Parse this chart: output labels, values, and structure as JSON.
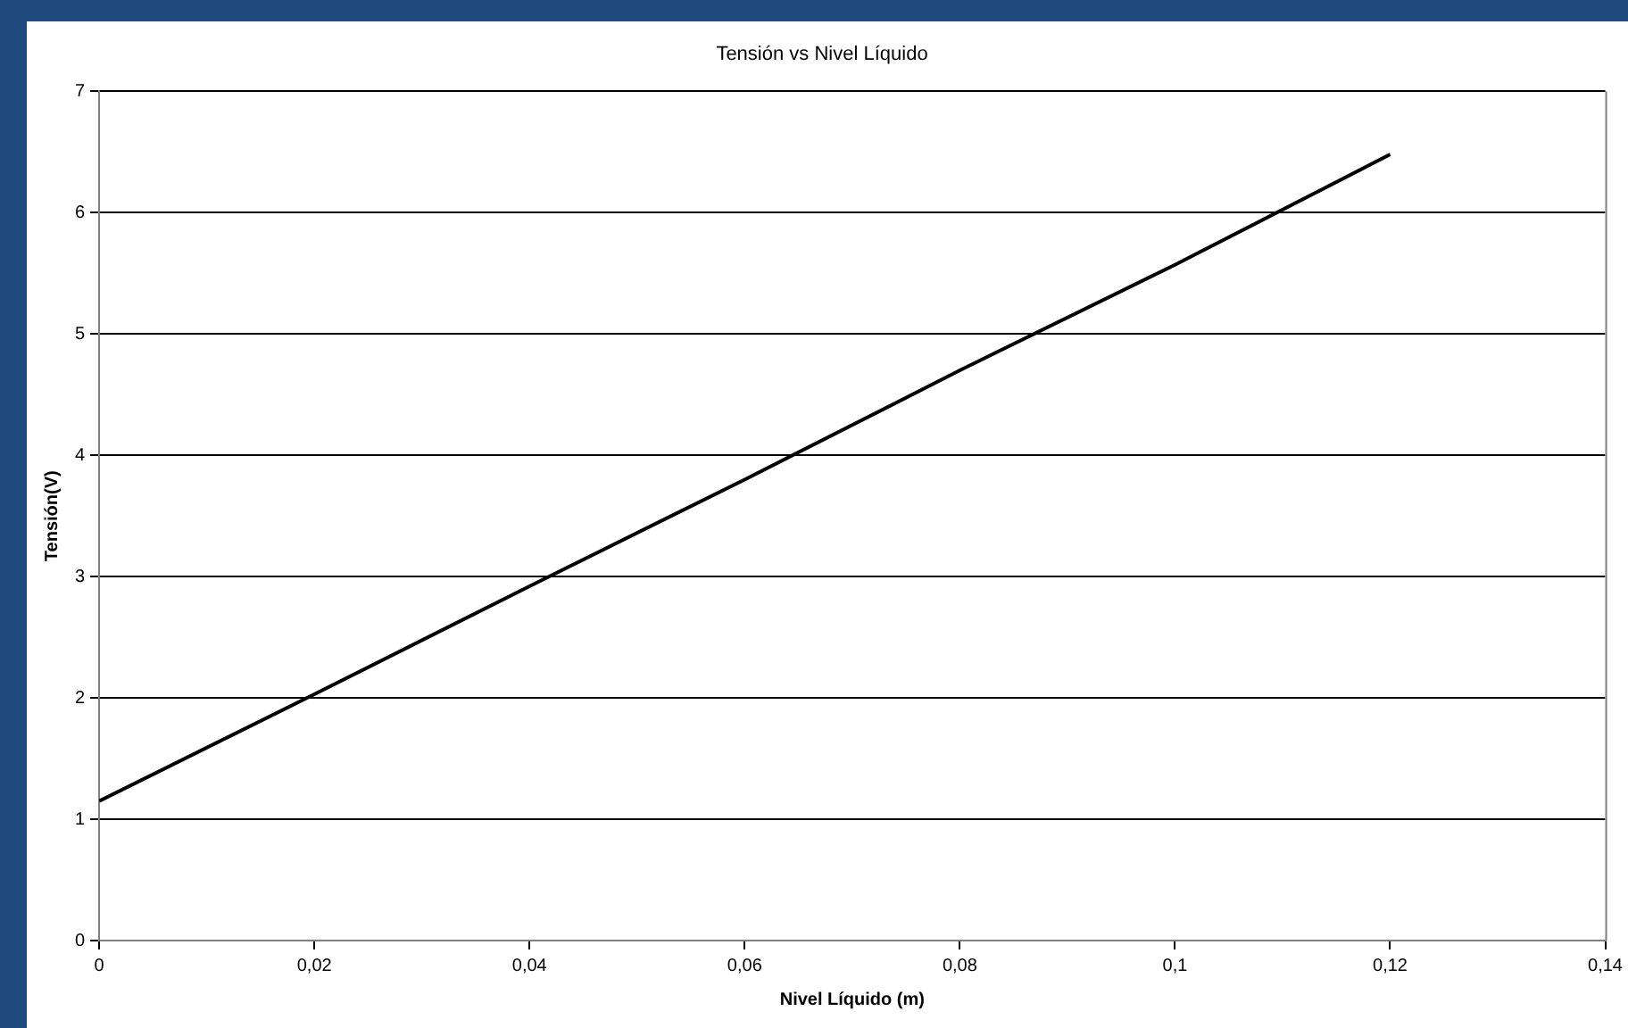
{
  "chart_data": {
    "type": "line",
    "title": "Tensión vs Nivel Líquido",
    "xlabel": "Nivel Líquido (m)",
    "ylabel": "Tensión(V)",
    "x": [
      0,
      0.02,
      0.04,
      0.06,
      0.08,
      0.1,
      0.12
    ],
    "series": [
      {
        "color": "#000000",
        "values": [
          1.15,
          2.03,
          2.92,
          3.8,
          4.7,
          5.57,
          6.48
        ]
      }
    ],
    "xlim": [
      0,
      0.14
    ],
    "xticks": [
      0,
      {
        "value": 0.02,
        "label": "0,02"
      },
      {
        "value": 0.04,
        "label": "0,04"
      },
      {
        "value": 0.06,
        "label": "0,06"
      },
      {
        "value": 0.08,
        "label": "0,08"
      },
      {
        "value": 0.1,
        "label": "0,1"
      },
      {
        "value": 0.12,
        "label": "0,12"
      },
      {
        "value": 0.14,
        "label": "0,14"
      }
    ],
    "ylim": [
      0,
      7
    ],
    "yticks": [
      0,
      1,
      2,
      3,
      4,
      5,
      6,
      7
    ],
    "grid": "y",
    "legend": false,
    "marker": "none",
    "line_style": "solid"
  }
}
